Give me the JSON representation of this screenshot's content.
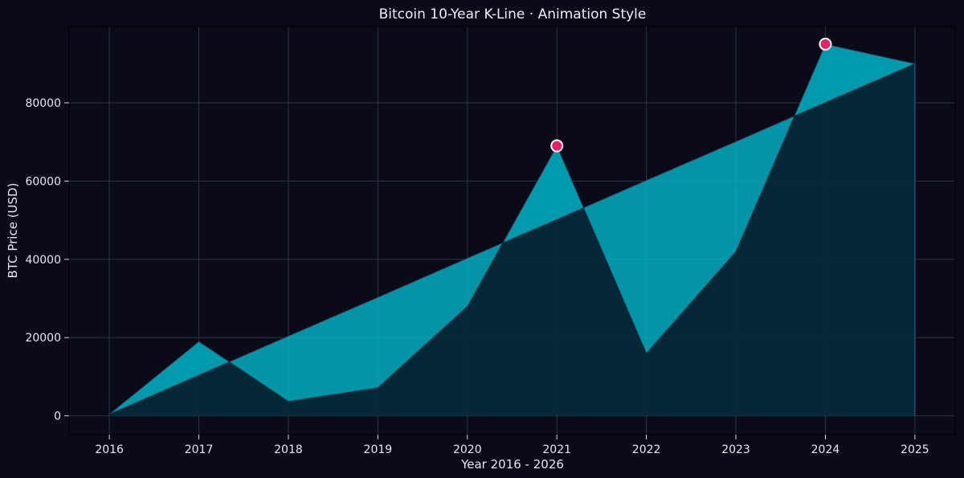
{
  "chart_data": {
    "type": "area",
    "title": "Bitcoin 10-Year K-Line · Animation Style",
    "xlabel": "Year 2016 - 2026",
    "ylabel": "BTC Price (USD)",
    "x": [
      2016,
      2017,
      2018,
      2019,
      2020,
      2021,
      2022,
      2023,
      2024,
      2025
    ],
    "x_tick_labels": [
      "2016",
      "2017",
      "2018",
      "2019",
      "2020",
      "2021",
      "2022",
      "2023",
      "2024",
      "2025"
    ],
    "y_ticks": [
      0,
      20000,
      40000,
      60000,
      80000
    ],
    "y_tick_labels": [
      "0",
      "20000",
      "40000",
      "60000",
      "80000"
    ],
    "xlim": [
      2015.55,
      2025.45
    ],
    "ylim": [
      -4800,
      99500
    ],
    "grid": true,
    "series": [
      {
        "values": [
          430,
          19000,
          3700,
          7200,
          28000,
          69000,
          16000,
          42000,
          95000,
          90000
        ]
      },
      {
        "values": [
          430,
          10400,
          20400,
          30300,
          40300,
          50200,
          60200,
          70100,
          80100,
          90000
        ]
      }
    ],
    "peak_markers": [
      {
        "x": 2021,
        "y": 69000
      },
      {
        "x": 2024,
        "y": 95000
      }
    ],
    "colors": {
      "background": "#0a0a18",
      "plot_background": "#0a0a18",
      "fill_between": "#00b8cc",
      "fill_under": "#062a3a",
      "price_line": "#0e3a4c",
      "marker_fill": "#e8206a",
      "marker_edge": "#ffffff",
      "text": "#e6e6ee",
      "grid": "#2f3446"
    }
  }
}
